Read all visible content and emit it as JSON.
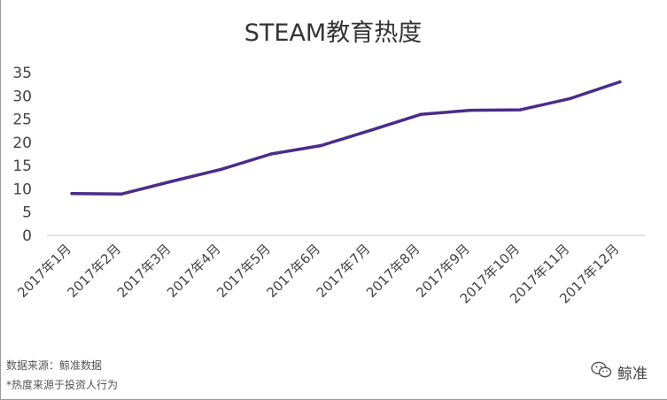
{
  "chart_data": {
    "type": "line",
    "title": "STEAM教育热度",
    "categories": [
      "2017年1月",
      "2017年2月",
      "2017年3月",
      "2017年4月",
      "2017年5月",
      "2017年6月",
      "2017年7月",
      "2017年8月",
      "2017年9月",
      "2017年10月",
      "2017年11月",
      "2017年12月"
    ],
    "series": [
      {
        "values": [
          9,
          8.9,
          11.6,
          14.2,
          17.5,
          19.3,
          22.6,
          26,
          26.9,
          27,
          29.4,
          33
        ]
      }
    ],
    "yticks": [
      "0",
      "5",
      "10",
      "15",
      "20",
      "25",
      "30",
      "35"
    ],
    "ylim": [
      0,
      35
    ],
    "grid": false,
    "line_color": "#4b2b8a"
  },
  "footer": {
    "source": "数据来源：鲸准数据",
    "note": "*热度来源于投资人行为"
  },
  "watermark": {
    "text": "鲸准",
    "icon": "wechat-icon"
  }
}
